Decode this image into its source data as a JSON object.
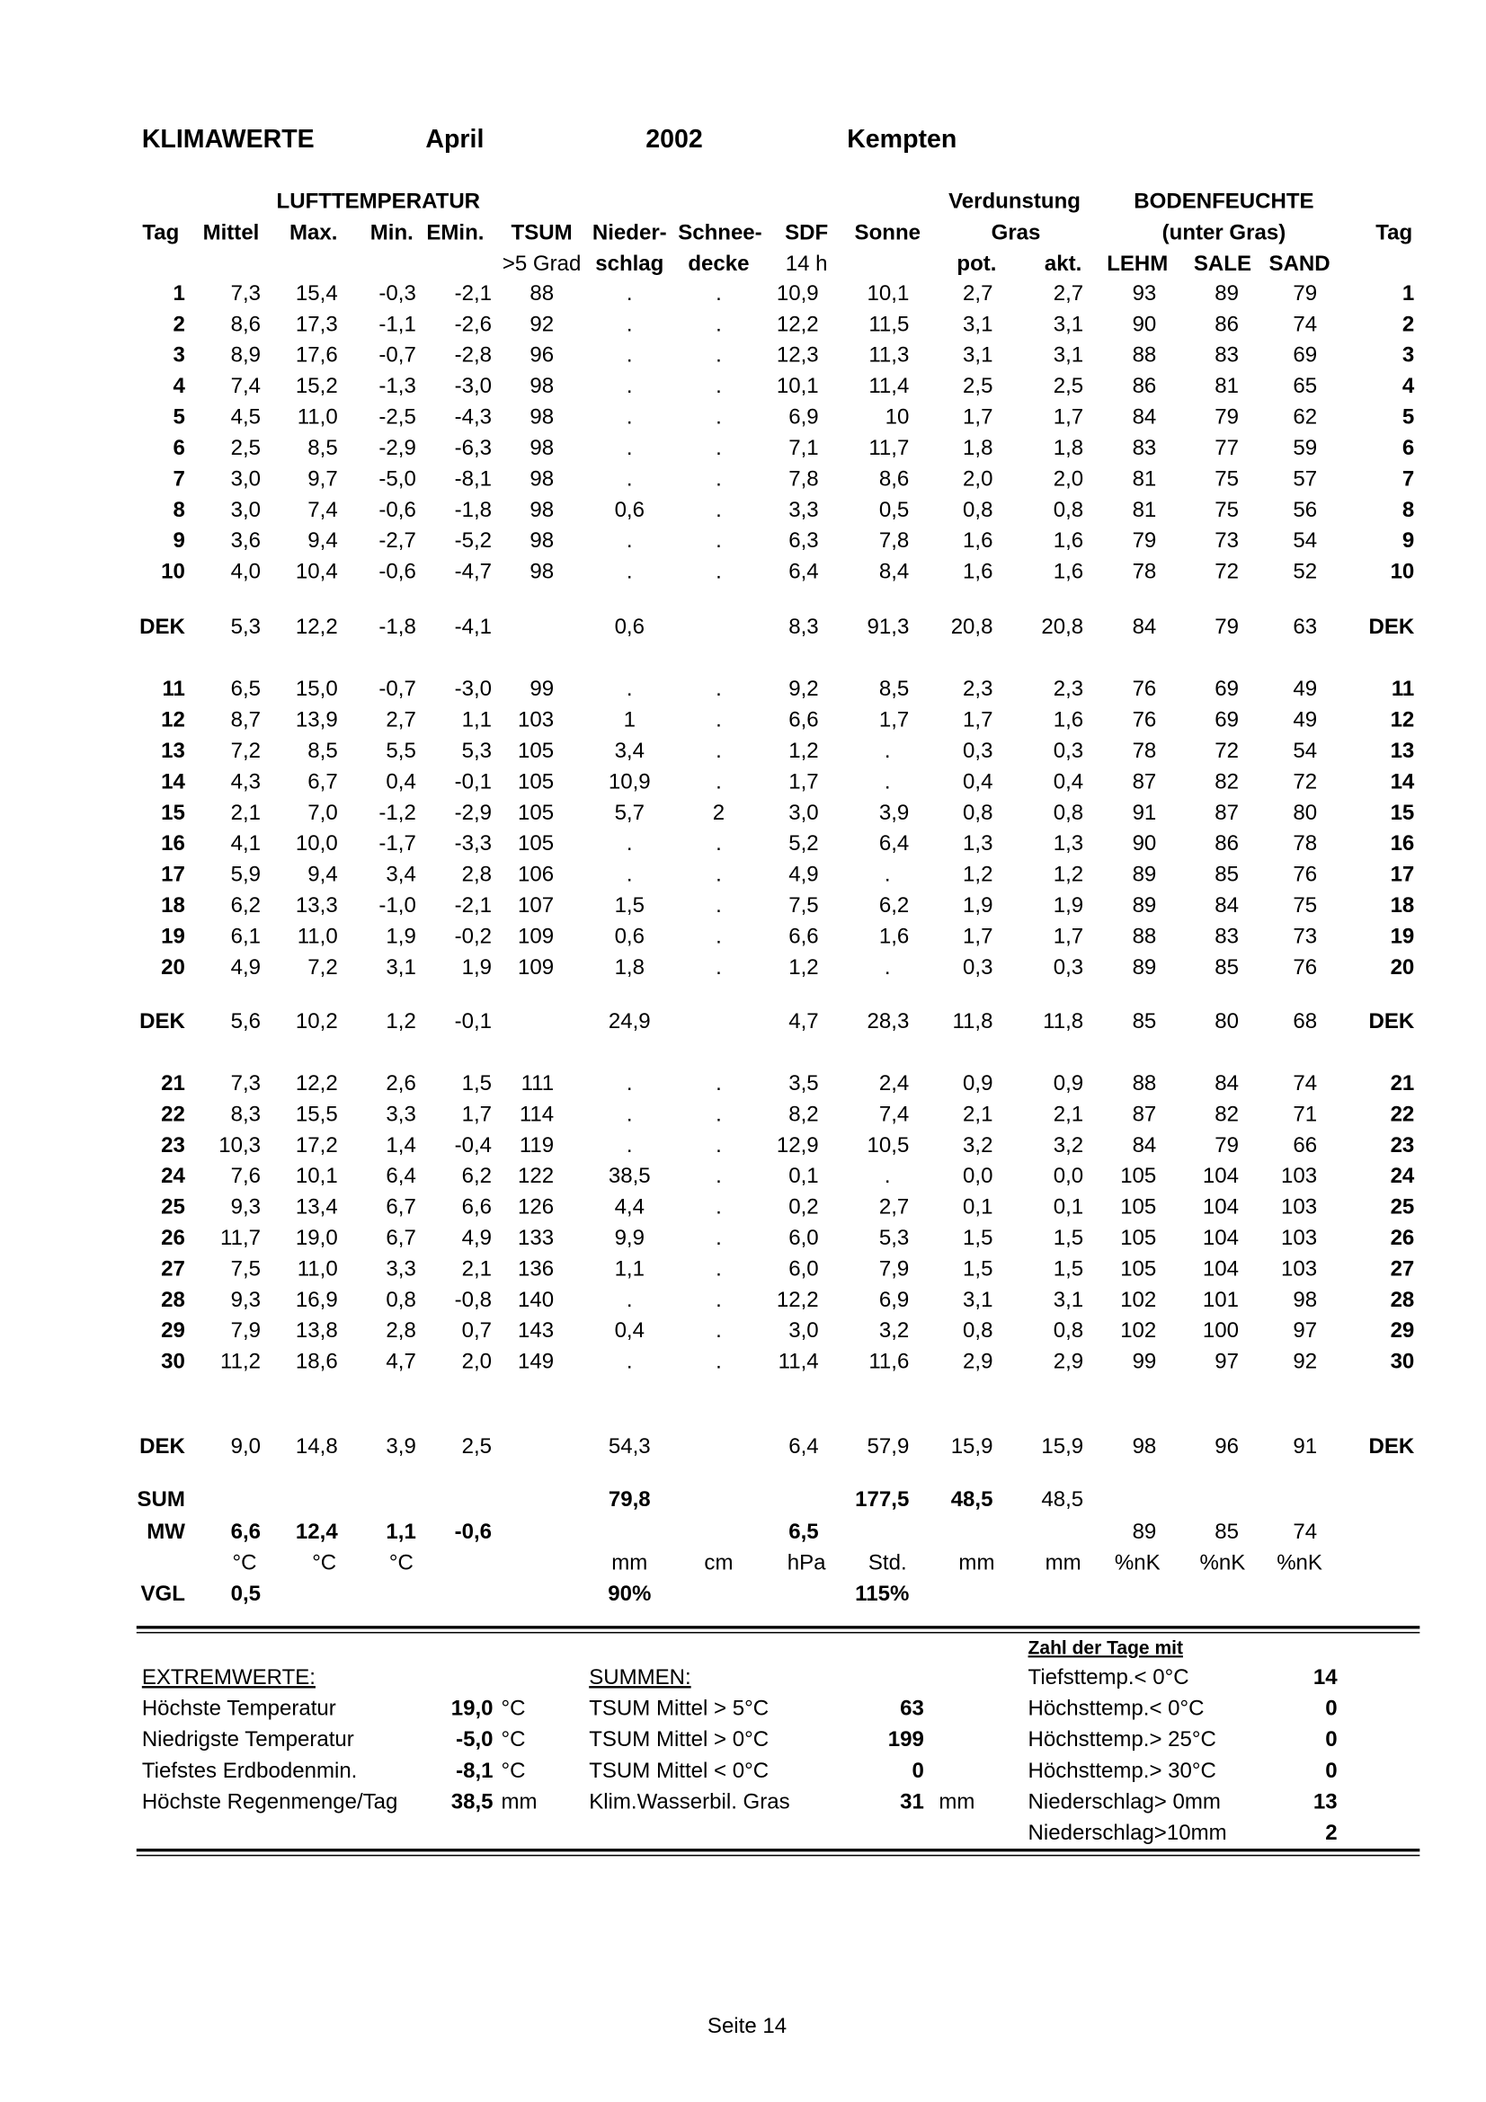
{
  "header": {
    "title": "KLIMAWERTE",
    "month": "April",
    "year": "2002",
    "location": "Kempten"
  },
  "table": {
    "group_headers": [
      "LUFTTEMPERATUR",
      "Verdunstung",
      "BODENFEUCHTE"
    ],
    "header_1": [
      "Tag",
      "Mittel",
      "Max.",
      "Min.",
      "EMin.",
      "TSUM",
      "Nieder-",
      "Schnee-",
      "SDF",
      "Sonne",
      "Gras",
      "(unter Gras)",
      "Tag"
    ],
    "header_2": [
      ">5 Grad",
      "schlag",
      "decke",
      "14 h",
      "pot.",
      "akt.",
      "LEHM",
      "SALE",
      "SAND"
    ],
    "rows": [
      [
        "1",
        "7,3",
        "15,4",
        "-0,3",
        "-2,1",
        "88",
        ".",
        ".",
        "10,9",
        "10,1",
        "2,7",
        "2,7",
        "93",
        "89",
        "79",
        "1"
      ],
      [
        "2",
        "8,6",
        "17,3",
        "-1,1",
        "-2,6",
        "92",
        ".",
        ".",
        "12,2",
        "11,5",
        "3,1",
        "3,1",
        "90",
        "86",
        "74",
        "2"
      ],
      [
        "3",
        "8,9",
        "17,6",
        "-0,7",
        "-2,8",
        "96",
        ".",
        ".",
        "12,3",
        "11,3",
        "3,1",
        "3,1",
        "88",
        "83",
        "69",
        "3"
      ],
      [
        "4",
        "7,4",
        "15,2",
        "-1,3",
        "-3,0",
        "98",
        ".",
        ".",
        "10,1",
        "11,4",
        "2,5",
        "2,5",
        "86",
        "81",
        "65",
        "4"
      ],
      [
        "5",
        "4,5",
        "11,0",
        "-2,5",
        "-4,3",
        "98",
        ".",
        ".",
        "6,9",
        "10",
        "1,7",
        "1,7",
        "84",
        "79",
        "62",
        "5"
      ],
      [
        "6",
        "2,5",
        "8,5",
        "-2,9",
        "-6,3",
        "98",
        ".",
        ".",
        "7,1",
        "11,7",
        "1,8",
        "1,8",
        "83",
        "77",
        "59",
        "6"
      ],
      [
        "7",
        "3,0",
        "9,7",
        "-5,0",
        "-8,1",
        "98",
        ".",
        ".",
        "7,8",
        "8,6",
        "2,0",
        "2,0",
        "81",
        "75",
        "57",
        "7"
      ],
      [
        "8",
        "3,0",
        "7,4",
        "-0,6",
        "-1,8",
        "98",
        "0,6",
        ".",
        "3,3",
        "0,5",
        "0,8",
        "0,8",
        "81",
        "75",
        "56",
        "8"
      ],
      [
        "9",
        "3,6",
        "9,4",
        "-2,7",
        "-5,2",
        "98",
        ".",
        ".",
        "6,3",
        "7,8",
        "1,6",
        "1,6",
        "79",
        "73",
        "54",
        "9"
      ],
      [
        "10",
        "4,0",
        "10,4",
        "-0,6",
        "-4,7",
        "98",
        ".",
        ".",
        "6,4",
        "8,4",
        "1,6",
        "1,6",
        "78",
        "72",
        "52",
        "10"
      ],
      [
        "DEK",
        "5,3",
        "12,2",
        "-1,8",
        "-4,1",
        null,
        "0,6",
        null,
        "8,3",
        "91,3",
        "20,8",
        "20,8",
        "84",
        "79",
        "63",
        "DEK"
      ],
      [
        "11",
        "6,5",
        "15,0",
        "-0,7",
        "-3,0",
        "99",
        ".",
        ".",
        "9,2",
        "8,5",
        "2,3",
        "2,3",
        "76",
        "69",
        "49",
        "11"
      ],
      [
        "12",
        "8,7",
        "13,9",
        "2,7",
        "1,1",
        "103",
        "1",
        ".",
        "6,6",
        "1,7",
        "1,7",
        "1,6",
        "76",
        "69",
        "49",
        "12"
      ],
      [
        "13",
        "7,2",
        "8,5",
        "5,5",
        "5,3",
        "105",
        "3,4",
        ".",
        "1,2",
        ".",
        "0,3",
        "0,3",
        "78",
        "72",
        "54",
        "13"
      ],
      [
        "14",
        "4,3",
        "6,7",
        "0,4",
        "-0,1",
        "105",
        "10,9",
        ".",
        "1,7",
        ".",
        "0,4",
        "0,4",
        "87",
        "82",
        "72",
        "14"
      ],
      [
        "15",
        "2,1",
        "7,0",
        "-1,2",
        "-2,9",
        "105",
        "5,7",
        "2",
        "3,0",
        "3,9",
        "0,8",
        "0,8",
        "91",
        "87",
        "80",
        "15"
      ],
      [
        "16",
        "4,1",
        "10,0",
        "-1,7",
        "-3,3",
        "105",
        ".",
        ".",
        "5,2",
        "6,4",
        "1,3",
        "1,3",
        "90",
        "86",
        "78",
        "16"
      ],
      [
        "17",
        "5,9",
        "9,4",
        "3,4",
        "2,8",
        "106",
        ".",
        ".",
        "4,9",
        ".",
        "1,2",
        "1,2",
        "89",
        "85",
        "76",
        "17"
      ],
      [
        "18",
        "6,2",
        "13,3",
        "-1,0",
        "-2,1",
        "107",
        "1,5",
        ".",
        "7,5",
        "6,2",
        "1,9",
        "1,9",
        "89",
        "84",
        "75",
        "18"
      ],
      [
        "19",
        "6,1",
        "11,0",
        "1,9",
        "-0,2",
        "109",
        "0,6",
        ".",
        "6,6",
        "1,6",
        "1,7",
        "1,7",
        "88",
        "83",
        "73",
        "19"
      ],
      [
        "20",
        "4,9",
        "7,2",
        "3,1",
        "1,9",
        "109",
        "1,8",
        ".",
        "1,2",
        ".",
        "0,3",
        "0,3",
        "89",
        "85",
        "76",
        "20"
      ],
      [
        "DEK",
        "5,6",
        "10,2",
        "1,2",
        "-0,1",
        null,
        "24,9",
        null,
        "4,7",
        "28,3",
        "11,8",
        "11,8",
        "85",
        "80",
        "68",
        "DEK"
      ],
      [
        "21",
        "7,3",
        "12,2",
        "2,6",
        "1,5",
        "111",
        ".",
        ".",
        "3,5",
        "2,4",
        "0,9",
        "0,9",
        "88",
        "84",
        "74",
        "21"
      ],
      [
        "22",
        "8,3",
        "15,5",
        "3,3",
        "1,7",
        "114",
        ".",
        ".",
        "8,2",
        "7,4",
        "2,1",
        "2,1",
        "87",
        "82",
        "71",
        "22"
      ],
      [
        "23",
        "10,3",
        "17,2",
        "1,4",
        "-0,4",
        "119",
        ".",
        ".",
        "12,9",
        "10,5",
        "3,2",
        "3,2",
        "84",
        "79",
        "66",
        "23"
      ],
      [
        "24",
        "7,6",
        "10,1",
        "6,4",
        "6,2",
        "122",
        "38,5",
        ".",
        "0,1",
        ".",
        "0,0",
        "0,0",
        "105",
        "104",
        "103",
        "24"
      ],
      [
        "25",
        "9,3",
        "13,4",
        "6,7",
        "6,6",
        "126",
        "4,4",
        ".",
        "0,2",
        "2,7",
        "0,1",
        "0,1",
        "105",
        "104",
        "103",
        "25"
      ],
      [
        "26",
        "11,7",
        "19,0",
        "6,7",
        "4,9",
        "133",
        "9,9",
        ".",
        "6,0",
        "5,3",
        "1,5",
        "1,5",
        "105",
        "104",
        "103",
        "26"
      ],
      [
        "27",
        "7,5",
        "11,0",
        "3,3",
        "2,1",
        "136",
        "1,1",
        ".",
        "6,0",
        "7,9",
        "1,5",
        "1,5",
        "105",
        "104",
        "103",
        "27"
      ],
      [
        "28",
        "9,3",
        "16,9",
        "0,8",
        "-0,8",
        "140",
        ".",
        ".",
        "12,2",
        "6,9",
        "3,1",
        "3,1",
        "102",
        "101",
        "98",
        "28"
      ],
      [
        "29",
        "7,9",
        "13,8",
        "2,8",
        "0,7",
        "143",
        "0,4",
        ".",
        "3,0",
        "3,2",
        "0,8",
        "0,8",
        "102",
        "100",
        "97",
        "29"
      ],
      [
        "30",
        "11,2",
        "18,6",
        "4,7",
        "2,0",
        "149",
        ".",
        ".",
        "11,4",
        "11,6",
        "2,9",
        "2,9",
        "99",
        "97",
        "92",
        "30"
      ],
      [
        "DEK",
        "9,0",
        "14,8",
        "3,9",
        "2,5",
        null,
        "54,3",
        null,
        "6,4",
        "57,9",
        "15,9",
        "15,9",
        "98",
        "96",
        "91",
        "DEK"
      ]
    ],
    "summary": [
      [
        "SUM",
        null,
        null,
        null,
        null,
        null,
        "79,8",
        null,
        null,
        "177,5",
        "48,5",
        "48,5",
        null,
        null,
        null,
        null
      ],
      [
        "MW",
        "6,6",
        "12,4",
        "1,1",
        "-0,6",
        null,
        null,
        null,
        "6,5",
        null,
        null,
        null,
        "89",
        "85",
        "74",
        null
      ],
      [
        null,
        "°C",
        "°C",
        "°C",
        null,
        null,
        "mm",
        "cm",
        "hPa",
        "Std.",
        "mm",
        "mm",
        "%nK",
        "%nK",
        "%nK",
        null
      ],
      [
        "VGL",
        "0,5",
        null,
        null,
        null,
        null,
        "90%",
        null,
        null,
        "115%",
        null,
        null,
        null,
        null,
        null,
        null
      ]
    ]
  },
  "extremes": {
    "title": "EXTREMWERTE:",
    "rows": [
      [
        "Höchste Temperatur",
        "19,0",
        "°C"
      ],
      [
        "Niedrigste Temperatur",
        "-5,0",
        "°C"
      ],
      [
        "Tiefstes Erdbodenmin.",
        "-8,1",
        "°C"
      ],
      [
        "Höchste Regenmenge/Tag",
        "38,5",
        "mm"
      ]
    ]
  },
  "sums": {
    "title": "SUMMEN:",
    "rows": [
      [
        "TSUM Mittel > 5°C",
        "63"
      ],
      [
        "TSUM Mittel > 0°C",
        "199"
      ],
      [
        "TSUM Mittel < 0°C",
        "0"
      ],
      [
        "Klim.Wasserbil. Gras",
        "31",
        "mm"
      ]
    ]
  },
  "days": {
    "title": "Zahl der Tage mit",
    "rows": [
      [
        "Tiefsttemp.< 0°C",
        "14"
      ],
      [
        "Höchsttemp.< 0°C",
        "0"
      ],
      [
        "Höchsttemp.> 25°C",
        "0"
      ],
      [
        "Höchsttemp.> 30°C",
        "0"
      ],
      [
        "Niederschlag> 0mm",
        "13"
      ],
      [
        "Niederschlag>10mm",
        "2"
      ]
    ]
  },
  "footer": "Seite 14"
}
